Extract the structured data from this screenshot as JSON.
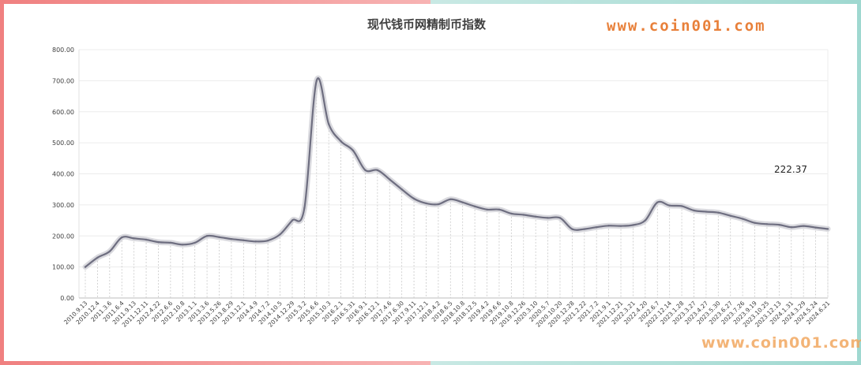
{
  "title": "现代钱币网精制币指数",
  "watermark_top": "www.coin001.com",
  "watermark_bottom": "www.coin001.com",
  "colors": {
    "line": "#6e6e80",
    "shadow": "#cfcfd6",
    "grid": "#ececec",
    "dropline": "#c8c8c8",
    "border_left": "#f08080",
    "border_right": "#9fd8d0",
    "watermark": "#e8803a"
  },
  "chart_data": {
    "type": "line",
    "title": "现代钱币网精制币指数",
    "xlabel": "",
    "ylabel": "",
    "ylim": [
      0,
      800
    ],
    "yticks": [
      "0.00",
      "100.00",
      "200.00",
      "300.00",
      "400.00",
      "500.00",
      "600.00",
      "700.00",
      "800.00"
    ],
    "grid": true,
    "last_value_label": "222.37",
    "x": [
      "2010.9.13",
      "2010.12.4",
      "2011.3.6",
      "2011.6.4",
      "2011.9.13",
      "2011.12.11",
      "2012.4.22",
      "2012.6.6",
      "2012.10.8",
      "2013.1.1",
      "2013.3.6",
      "2013.5.26",
      "2013.8.29",
      "2013.12.1",
      "2014.4.9",
      "2014.7.2",
      "2014.10.5",
      "2014.12.29",
      "2015.3.2",
      "2015.6.6",
      "2015.10.3",
      "2016.2.1",
      "2016.5.31",
      "2016.9.1",
      "2016.12.1",
      "2017.4.6",
      "2017.6.30",
      "2017.9.11",
      "2017.12.1",
      "2018.4.2",
      "2018.6.5",
      "2018.10.8",
      "2018.12.5",
      "2019.4.2",
      "2019.6.6",
      "2019.10.8",
      "2019.12.26",
      "2020.3.10",
      "2020.5.7",
      "2020.10.20",
      "2020.12.28",
      "2021.2.22",
      "2021.7.2",
      "2021.9.1",
      "2021.12.21",
      "2022.3.21",
      "2022.4.20",
      "2022.6.7",
      "2022.12.14",
      "2023.1.28",
      "2023.3.27",
      "2023.4.27",
      "2023.5.30",
      "2023.6.27",
      "2023.7.26",
      "2023.9.19",
      "2023.10.25",
      "2023.12.13",
      "2024.1.31",
      "2024.3.29",
      "2024.5.24",
      "2024.6.21"
    ],
    "x_labels_shown": [
      "2010.9.13",
      "2010.12.4",
      "2011.3.6",
      "2011.6.4",
      "2011.9.13",
      "2011.12.11",
      "2012.4.22",
      "2012.6.6",
      "2012.10.8",
      "2013.1.1",
      "2013.3.6",
      "2013.5.26",
      "2013.8.29",
      "2013.12.1",
      "2014.4.9",
      "2014.7.2",
      "2014.10.5",
      "2014.12.29",
      "2015.3.2",
      "2015.6.6",
      "2015.10.3",
      "2016.2.1",
      "2016.5.31",
      "2016.9.1",
      "2016.12.1",
      "2017.4.6",
      "2017.6.30",
      "2017.9.11",
      "2017.12.1",
      "2018.4.2",
      "2018.6.5",
      "2018.10.8",
      "2018.12.5",
      "2019.4.2",
      "2019.6.6",
      "2019.10.8",
      "2019.12.26",
      "2020.3.10",
      "2020.5.7",
      "2020.10.20",
      "2020.12.28",
      "2021.2.22",
      "2021.7.2",
      "2021.9.1",
      "2021.12.21",
      "2022.3.21",
      "2022.4.20",
      "2022.6.7",
      "2022.12.14",
      "2023.1.28",
      "2023.3.27",
      "2023.4.27",
      "2023.5.30",
      "2023.6.27",
      "2023.7.26",
      "2023.9.19",
      "2023.10.25",
      "2023.12.13",
      "2024.1.31",
      "2024.3.29",
      "2024.5.24",
      "2024.6.21"
    ],
    "series": [
      {
        "values": [
          100,
          130,
          150,
          195,
          192,
          188,
          180,
          178,
          172,
          178,
          200,
          196,
          190,
          186,
          182,
          185,
          205,
          250,
          290,
          700,
          560,
          505,
          475,
          412,
          412,
          382,
          350,
          320,
          305,
          302,
          318,
          308,
          295,
          285,
          285,
          272,
          268,
          262,
          258,
          258,
          222,
          222,
          228,
          233,
          232,
          235,
          250,
          308,
          298,
          296,
          282,
          278,
          275,
          265,
          255,
          242,
          238,
          236,
          228,
          232,
          227,
          222.37
        ]
      }
    ]
  }
}
